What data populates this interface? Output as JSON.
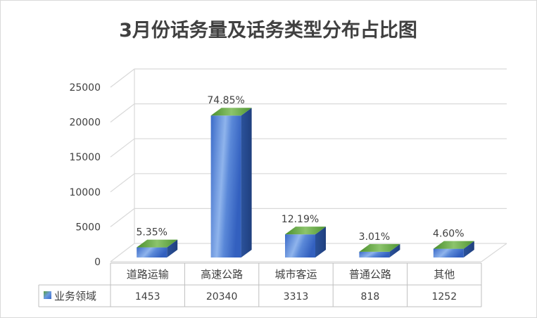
{
  "chart_data": {
    "type": "bar",
    "title": "3月份话务量及话务类型分布占比图",
    "categories": [
      "道路运输",
      "高速公路",
      "城市客运",
      "普通公路",
      "其他"
    ],
    "series": [
      {
        "name": "业务领域",
        "values": [
          1453,
          20340,
          3313,
          818,
          1252
        ]
      }
    ],
    "data_labels": [
      "5.35%",
      "74.85%",
      "12.19%",
      "3.01%",
      "4.60%"
    ],
    "ylim": [
      0,
      25000
    ],
    "yticks": [
      0,
      5000,
      10000,
      15000,
      20000,
      25000
    ],
    "grid": true,
    "data_table": true,
    "colors": {
      "bar_front_light": "#6b9ae0",
      "bar_front_dark": "#3a6ac8",
      "bar_side": "#2a4f96",
      "bar_top": "#5aa03c",
      "grid": "#d9d9d9",
      "text": "#404040"
    }
  }
}
